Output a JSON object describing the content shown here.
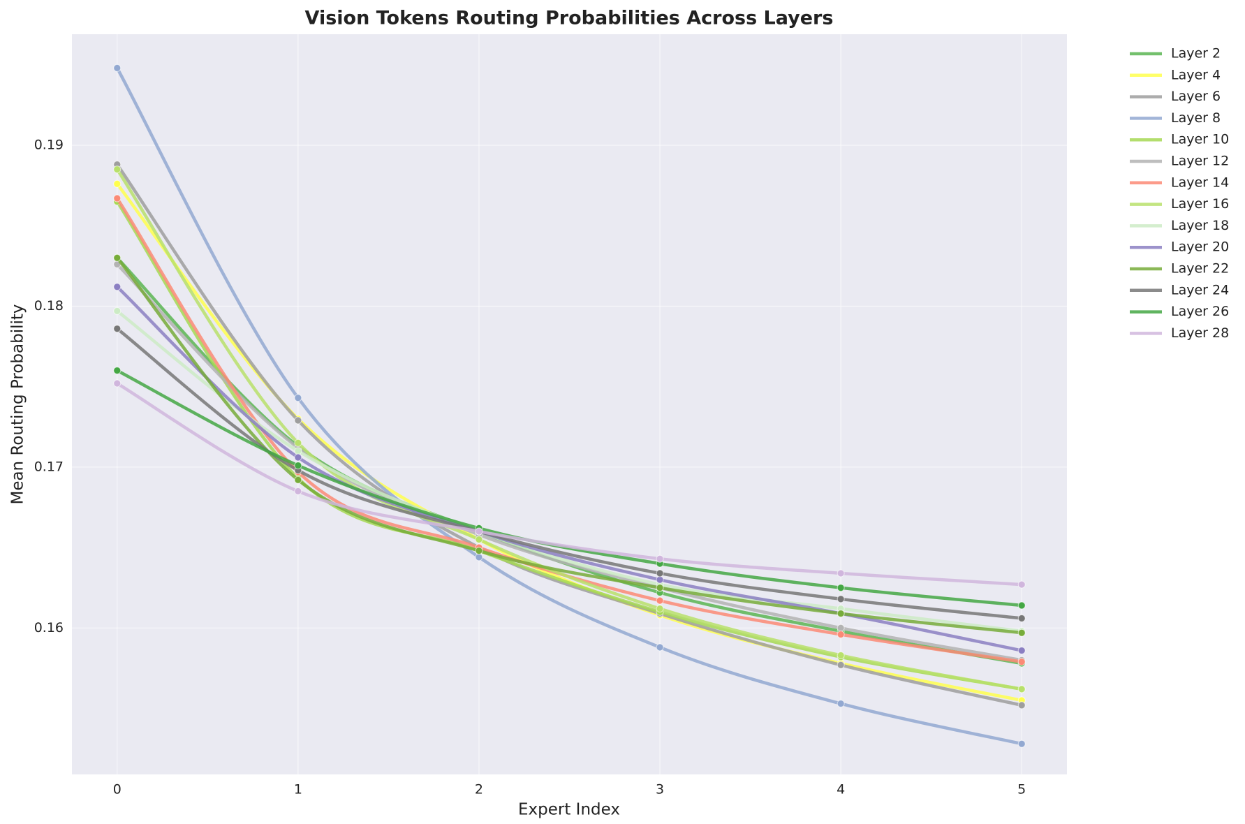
{
  "chart_data": {
    "type": "line",
    "title": "Vision Tokens Routing Probabilities Across Layers",
    "xlabel": "Expert Index",
    "ylabel": "Mean Routing Probability",
    "x": [
      0,
      1,
      2,
      3,
      4,
      5
    ],
    "xlim": [
      -0.25,
      5.25
    ],
    "xticks": [
      0,
      1,
      2,
      3,
      4,
      5
    ],
    "ylim": [
      0.1509,
      0.1969
    ],
    "yticks": [
      0.16,
      0.17,
      0.18,
      0.19
    ],
    "grid": true,
    "legend": "outside upper right",
    "series": [
      {
        "name": "Layer 2",
        "color": "#5ab552",
        "values": [
          0.183,
          0.1713,
          0.166,
          0.1622,
          0.1598,
          0.1578
        ]
      },
      {
        "name": "Layer 4",
        "color": "#ffff4d",
        "values": [
          0.1876,
          0.173,
          0.1655,
          0.1608,
          0.1578,
          0.1555
        ]
      },
      {
        "name": "Layer 6",
        "color": "#9e9e9e",
        "values": [
          0.1888,
          0.1729,
          0.165,
          0.1609,
          0.1577,
          0.1552
        ]
      },
      {
        "name": "Layer 8",
        "color": "#92a8d1",
        "values": [
          0.1948,
          0.1743,
          0.1644,
          0.1588,
          0.1553,
          0.1528
        ]
      },
      {
        "name": "Layer 10",
        "color": "#a6d854",
        "values": [
          0.1865,
          0.1693,
          0.1648,
          0.161,
          0.1582,
          0.1562
        ]
      },
      {
        "name": "Layer 12",
        "color": "#b3b3b3",
        "values": [
          0.1826,
          0.1712,
          0.1658,
          0.1625,
          0.16,
          0.158
        ]
      },
      {
        "name": "Layer 14",
        "color": "#fb8a76",
        "values": [
          0.1867,
          0.1697,
          0.165,
          0.1617,
          0.1596,
          0.1579
        ]
      },
      {
        "name": "Layer 16",
        "color": "#b8e06b",
        "values": [
          0.1885,
          0.1715,
          0.1655,
          0.1612,
          0.1583,
          0.1562
        ]
      },
      {
        "name": "Layer 18",
        "color": "#ccebc5",
        "values": [
          0.1797,
          0.171,
          0.166,
          0.1627,
          0.1612,
          0.1598
        ]
      },
      {
        "name": "Layer 20",
        "color": "#8b7fc2",
        "values": [
          0.1812,
          0.1706,
          0.166,
          0.163,
          0.1609,
          0.1586
        ]
      },
      {
        "name": "Layer 22",
        "color": "#77ac3a",
        "values": [
          0.183,
          0.1692,
          0.1648,
          0.1625,
          0.1609,
          0.1597
        ]
      },
      {
        "name": "Layer 24",
        "color": "#777777",
        "values": [
          0.1786,
          0.1698,
          0.166,
          0.1634,
          0.1618,
          0.1606
        ]
      },
      {
        "name": "Layer 26",
        "color": "#44a744",
        "values": [
          0.176,
          0.1701,
          0.1662,
          0.164,
          0.1625,
          0.1614
        ]
      },
      {
        "name": "Layer 28",
        "color": "#d0b6dd",
        "values": [
          0.1752,
          0.1685,
          0.166,
          0.1643,
          0.1634,
          0.1627
        ]
      }
    ]
  }
}
